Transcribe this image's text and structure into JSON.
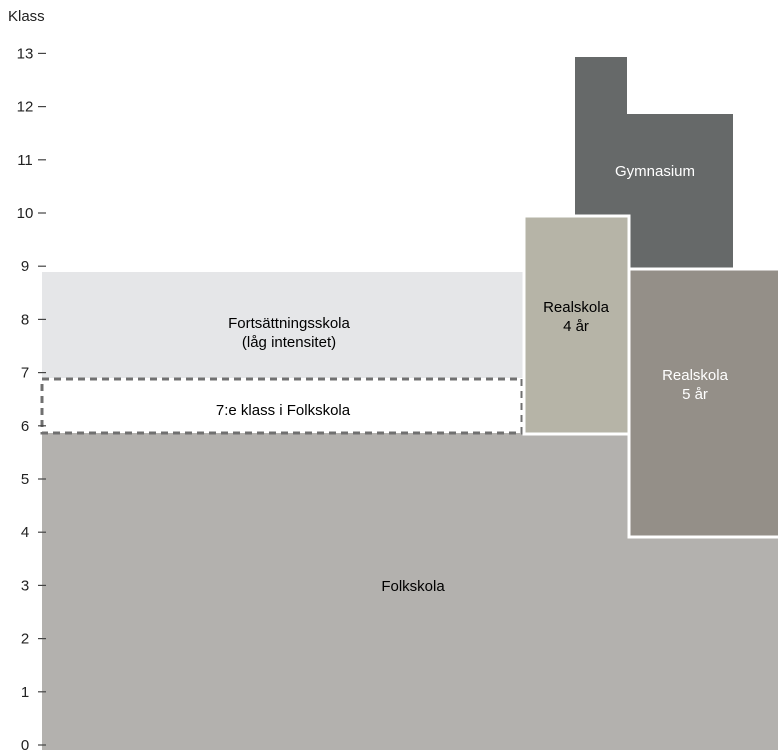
{
  "axis": {
    "title": "Klass",
    "ticks": [
      "0",
      "1",
      "2",
      "3",
      "4",
      "5",
      "6",
      "7",
      "8",
      "9",
      "10",
      "11",
      "12",
      "13"
    ]
  },
  "colors": {
    "folkskola": "#b3b1ae",
    "fortsattningsskola": "#e5e6e8",
    "realskola_4": "#b6b4a7",
    "realskola_5": "#948f88",
    "gymnasium": "#666969",
    "dashed_border": "#707070",
    "label_light": "#ffffff",
    "label_dark": "#222222"
  },
  "blocks": {
    "folkskola": {
      "label": "Folkskola",
      "from_klass": 0,
      "to_klass": 6
    },
    "fortsattningsskola": {
      "label_line1": "Fortsättningsskola",
      "label_line2": "(låg intensitet)",
      "from_klass": 7,
      "to_klass": 9
    },
    "sjunde_klass": {
      "label": "7:e klass i Folkskola",
      "from_klass": 6,
      "to_klass": 7
    },
    "realskola_4": {
      "label_line1": "Realskola",
      "label_line2": "4 år",
      "from_klass": 6,
      "to_klass": 10
    },
    "realskola_5": {
      "label_line1": "Realskola",
      "label_line2": "5 år",
      "from_klass": 4,
      "to_klass": 9
    },
    "gymnasium": {
      "label": "Gymnasium",
      "from_klass": 9,
      "to_klass": 13
    }
  }
}
